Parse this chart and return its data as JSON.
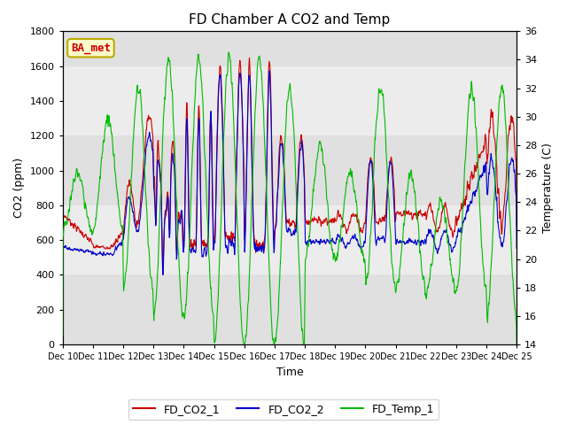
{
  "title": "FD Chamber A CO2 and Temp",
  "xlabel": "Time",
  "ylabel_left": "CO2 (ppm)",
  "ylabel_right": "Temperature (C)",
  "ylim_left": [
    0,
    1800
  ],
  "ylim_right": [
    14,
    36
  ],
  "yticks_left": [
    0,
    200,
    400,
    600,
    800,
    1000,
    1200,
    1400,
    1600,
    1800
  ],
  "yticks_right": [
    14,
    16,
    18,
    20,
    22,
    24,
    26,
    28,
    30,
    32,
    34,
    36
  ],
  "xstart": 10,
  "xend": 25,
  "xtick_labels": [
    "Dec 10",
    "Dec 11",
    "Dec 12",
    "Dec 13",
    "Dec 14",
    "Dec 15",
    "Dec 16",
    "Dec 17",
    "Dec 18",
    "Dec 19",
    "Dec 20",
    "Dec 21",
    "Dec 22",
    "Dec 23",
    "Dec 24",
    "Dec 25"
  ],
  "color_co2_1": "#cc0000",
  "color_co2_2": "#0000cc",
  "color_temp": "#00bb00",
  "legend_labels": [
    "FD_CO2_1",
    "FD_CO2_2",
    "FD_Temp_1"
  ],
  "annotation_text": "BA_met",
  "annotation_fg": "#cc0000",
  "annotation_bg": "#ffffcc",
  "annotation_edge": "#bbaa00",
  "bg_bands": [
    [
      0,
      400,
      "#e0e0e0"
    ],
    [
      400,
      800,
      "#ececec"
    ],
    [
      800,
      1200,
      "#e0e0e0"
    ],
    [
      1200,
      1600,
      "#ececec"
    ],
    [
      1600,
      1800,
      "#e0e0e0"
    ]
  ],
  "title_fontsize": 11,
  "axis_fontsize": 9,
  "tick_fontsize": 8,
  "figsize": [
    6.4,
    4.8
  ],
  "dpi": 100
}
